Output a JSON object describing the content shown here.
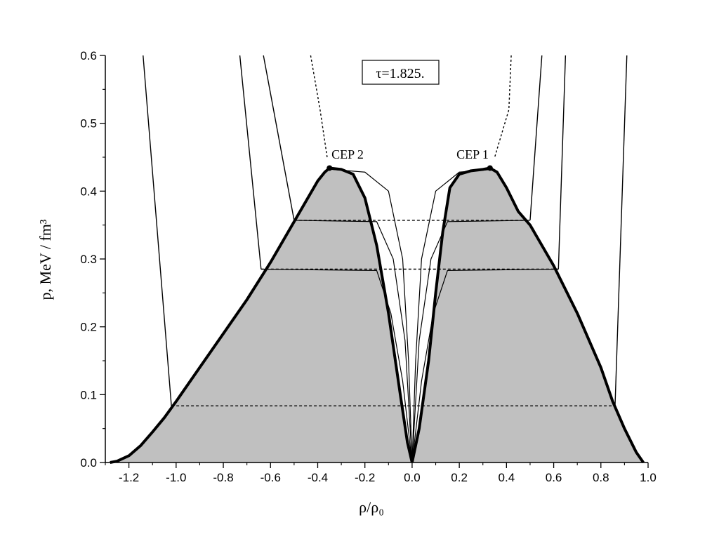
{
  "chart_data": {
    "type": "area",
    "title": "",
    "xlabel": "ρ/ρ₀",
    "ylabel": "p, MeV / fm³",
    "xlim": [
      -1.3,
      1.0
    ],
    "ylim": [
      0.0,
      0.6
    ],
    "x_ticks": [
      -1.2,
      -1.0,
      -0.8,
      -0.6,
      -0.4,
      -0.2,
      0.0,
      0.2,
      0.4,
      0.6,
      0.8,
      1.0
    ],
    "x_tick_labels": [
      "-1.2",
      "-1.0",
      "-0.8",
      "-0.6",
      "-0.4",
      "-0.2",
      "0.0",
      "0.2",
      "0.4",
      "0.6",
      "0.8",
      "1.0"
    ],
    "y_ticks": [
      0.0,
      0.1,
      0.2,
      0.3,
      0.4,
      0.5,
      0.6
    ],
    "y_tick_labels": [
      "0.0",
      "0.1",
      "0.2",
      "0.3",
      "0.4",
      "0.5",
      "0.6"
    ],
    "grid": false,
    "legend": "none",
    "shade_color": "#c0c0c0",
    "annotations": {
      "tau_label": "τ=1.825.",
      "cep2_label": "CEP 2",
      "cep1_label": "CEP 1"
    },
    "critical_points": [
      {
        "name": "CEP 2",
        "x": -0.35,
        "y": 0.434
      },
      {
        "name": "CEP 1",
        "x": 0.33,
        "y": 0.434
      }
    ],
    "binodal_left": [
      [
        -1.28,
        0.0
      ],
      [
        -1.25,
        0.002
      ],
      [
        -1.2,
        0.01
      ],
      [
        -1.15,
        0.025
      ],
      [
        -1.1,
        0.045
      ],
      [
        -1.05,
        0.066
      ],
      [
        -1.0,
        0.09
      ],
      [
        -0.9,
        0.14
      ],
      [
        -0.8,
        0.19
      ],
      [
        -0.7,
        0.24
      ],
      [
        -0.6,
        0.295
      ],
      [
        -0.5,
        0.355
      ],
      [
        -0.45,
        0.385
      ],
      [
        -0.4,
        0.415
      ],
      [
        -0.37,
        0.428
      ],
      [
        -0.35,
        0.434
      ],
      [
        -0.3,
        0.432
      ],
      [
        -0.25,
        0.425
      ],
      [
        -0.2,
        0.39
      ],
      [
        -0.15,
        0.32
      ],
      [
        -0.1,
        0.22
      ],
      [
        -0.05,
        0.1
      ],
      [
        -0.02,
        0.03
      ],
      [
        0.0,
        0.0
      ]
    ],
    "binodal_right": [
      [
        0.0,
        0.0
      ],
      [
        0.03,
        0.05
      ],
      [
        0.07,
        0.15
      ],
      [
        0.1,
        0.25
      ],
      [
        0.13,
        0.34
      ],
      [
        0.16,
        0.405
      ],
      [
        0.2,
        0.425
      ],
      [
        0.25,
        0.43
      ],
      [
        0.3,
        0.432
      ],
      [
        0.33,
        0.434
      ],
      [
        0.36,
        0.428
      ],
      [
        0.4,
        0.405
      ],
      [
        0.45,
        0.37
      ],
      [
        0.5,
        0.35
      ],
      [
        0.6,
        0.29
      ],
      [
        0.7,
        0.22
      ],
      [
        0.8,
        0.14
      ],
      [
        0.85,
        0.09
      ],
      [
        0.9,
        0.05
      ],
      [
        0.95,
        0.015
      ],
      [
        0.98,
        0.0
      ]
    ],
    "isobars": [
      {
        "y": 0.0835,
        "x_left": -1.02,
        "x_right": 0.86
      },
      {
        "y": 0.285,
        "x_left": -0.64,
        "x_right": 0.62
      },
      {
        "y": 0.357,
        "x_left": -0.5,
        "x_right": 0.5
      }
    ],
    "isotherms": [
      {
        "style": "solid",
        "points": [
          [
            -1.14,
            0.6
          ],
          [
            -1.02,
            0.0835
          ]
        ]
      },
      {
        "style": "solid",
        "points": [
          [
            -0.73,
            0.6
          ],
          [
            -0.64,
            0.285
          ]
        ]
      },
      {
        "style": "solid",
        "points": [
          [
            -0.63,
            0.6
          ],
          [
            -0.5,
            0.357
          ]
        ]
      },
      {
        "style": "dotted",
        "points": [
          [
            -0.43,
            0.6
          ],
          [
            -0.39,
            0.52
          ],
          [
            -0.36,
            0.45
          ]
        ]
      },
      {
        "style": "dotted",
        "points": [
          [
            0.42,
            0.6
          ],
          [
            0.41,
            0.52
          ],
          [
            0.35,
            0.45
          ]
        ]
      },
      {
        "style": "solid",
        "points": [
          [
            0.55,
            0.6
          ],
          [
            0.5,
            0.357
          ]
        ]
      },
      {
        "style": "solid",
        "points": [
          [
            0.65,
            0.6
          ],
          [
            0.62,
            0.285
          ]
        ]
      },
      {
        "style": "solid",
        "points": [
          [
            0.91,
            0.6
          ],
          [
            0.86,
            0.0835
          ]
        ]
      }
    ],
    "spinodals": [
      [
        [
          -0.34,
          0.432
        ],
        [
          -0.2,
          0.428
        ],
        [
          -0.1,
          0.4
        ],
        [
          -0.04,
          0.3
        ],
        [
          -0.015,
          0.15
        ],
        [
          0.0,
          0.0
        ]
      ],
      [
        [
          0.34,
          0.432
        ],
        [
          0.2,
          0.428
        ],
        [
          0.1,
          0.4
        ],
        [
          0.04,
          0.3
        ],
        [
          0.015,
          0.15
        ],
        [
          0.0,
          0.0
        ]
      ],
      [
        [
          -0.5,
          0.357
        ],
        [
          -0.15,
          0.355
        ],
        [
          -0.08,
          0.3
        ],
        [
          -0.03,
          0.18
        ],
        [
          0.0,
          0.0
        ]
      ],
      [
        [
          0.5,
          0.357
        ],
        [
          0.15,
          0.355
        ],
        [
          0.08,
          0.3
        ],
        [
          0.03,
          0.18
        ],
        [
          0.0,
          0.0
        ]
      ],
      [
        [
          -0.64,
          0.285
        ],
        [
          -0.15,
          0.283
        ],
        [
          -0.09,
          0.22
        ],
        [
          -0.04,
          0.12
        ],
        [
          0.0,
          0.0
        ]
      ],
      [
        [
          0.62,
          0.285
        ],
        [
          0.15,
          0.283
        ],
        [
          0.09,
          0.22
        ],
        [
          0.04,
          0.12
        ],
        [
          0.0,
          0.0
        ]
      ]
    ]
  }
}
